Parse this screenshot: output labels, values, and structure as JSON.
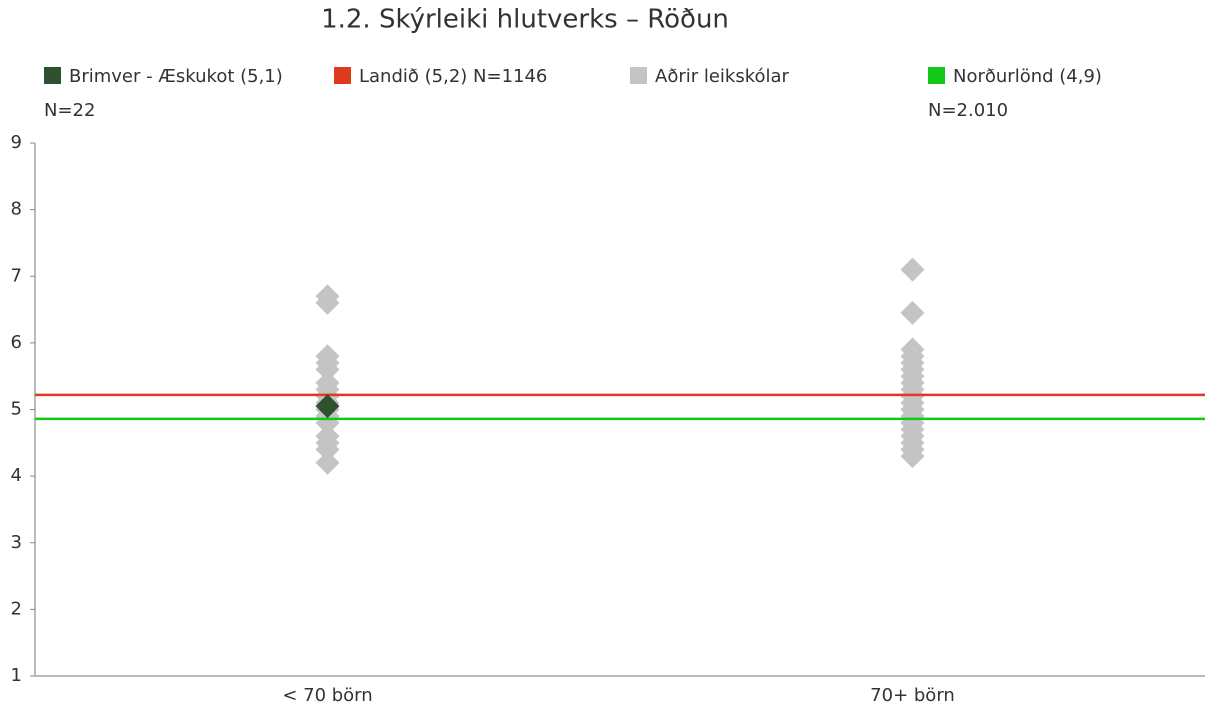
{
  "chart_data": {
    "type": "scatter",
    "title": "1.2. Skýrleiki hlutverks – Röðun",
    "categories": [
      "< 70 börn",
      "70+ börn"
    ],
    "ylim": [
      1,
      9
    ],
    "yticks": [
      1,
      2,
      3,
      4,
      5,
      6,
      7,
      8,
      9
    ],
    "series": [
      {
        "name": "Brimver - Æskukot (5,1) N=22",
        "color": "#2e5230",
        "values": [
          5.05,
          null
        ]
      },
      {
        "name": "Landið (5,2) N=1146",
        "color": "#e03a1e",
        "line": true,
        "value": 5.22
      },
      {
        "name": "Aðrir leikskólar",
        "color": "#c4c4c4",
        "values": [
          [
            6.7,
            6.6,
            5.8,
            5.7,
            5.6,
            5.4,
            5.3,
            5.2,
            5.1,
            5.0,
            4.9,
            4.8,
            4.6,
            4.5,
            4.4,
            4.2
          ],
          [
            7.1,
            6.45,
            5.9,
            5.8,
            5.7,
            5.6,
            5.5,
            5.4,
            5.3,
            5.2,
            5.1,
            5.0,
            4.9,
            4.8,
            4.7,
            4.6,
            4.5,
            4.4,
            4.3
          ]
        ]
      },
      {
        "name": "Norðurlönd (4,9) N=2.010",
        "color": "#14c81a",
        "line": true,
        "value": 4.86
      }
    ]
  }
}
